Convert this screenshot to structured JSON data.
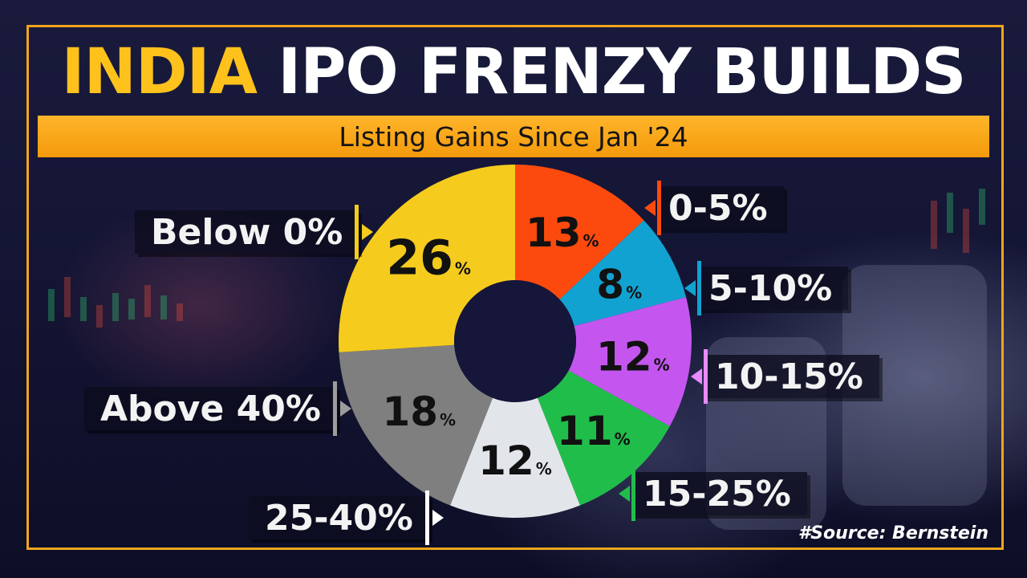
{
  "title": {
    "part1": "INDIA",
    "part2": "IPO FRENZY BUILDS"
  },
  "subtitle": "Listing Gains Since Jan '24",
  "source": "#Source: Bernstein",
  "colors": {
    "accent": "#ffc21c",
    "banner": "#f7a21b",
    "frame": "#f0a51d"
  },
  "chart_data": {
    "type": "pie",
    "style": "donut",
    "unit": "%",
    "segments": [
      {
        "label": "0-5%",
        "value": 13,
        "color": "#fc4a0e"
      },
      {
        "label": "5-10%",
        "value": 8,
        "color": "#12a2d1"
      },
      {
        "label": "10-15%",
        "value": 12,
        "color": "#c456ef"
      },
      {
        "label": "15-25%",
        "value": 11,
        "color": "#21bd4b"
      },
      {
        "label": "25-40%",
        "value": 12,
        "color": "#e2e6ea"
      },
      {
        "label": "Above 40%",
        "value": 18,
        "color": "#7f7f7f"
      },
      {
        "label": "Below 0%",
        "value": 26,
        "color": "#f5cb1d"
      }
    ]
  },
  "legend": [
    {
      "text": "0-5%",
      "color": "#fc4a0e"
    },
    {
      "text": "5-10%",
      "color": "#12a2d1"
    },
    {
      "text": "10-15%",
      "color": "#e88bff"
    },
    {
      "text": "15-25%",
      "color": "#21bd4b"
    },
    {
      "text": "25-40%",
      "color": "#ffffff"
    },
    {
      "text": "Above 40%",
      "color": "#9c9c9c"
    },
    {
      "text": "Below 0%",
      "color": "#f5cb1d"
    }
  ]
}
